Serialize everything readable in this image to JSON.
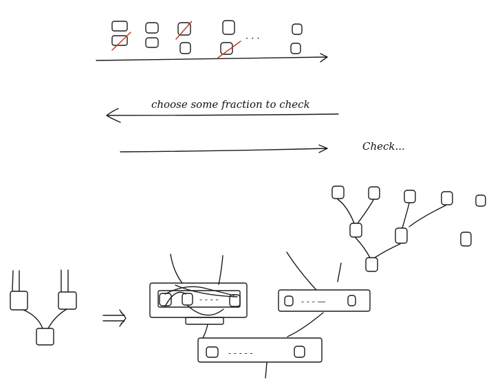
{
  "annotations": {
    "choose_text": "choose some fraction to check",
    "check_text": "Check..."
  },
  "colors": {
    "ink": "#1a1a1a",
    "strike": "#c0392b",
    "background": "#ffffff"
  }
}
